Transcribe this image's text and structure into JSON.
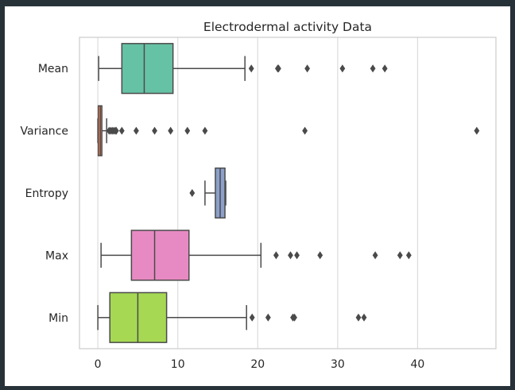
{
  "chart_data": {
    "type": "boxplot",
    "orientation": "horizontal",
    "title": "Electrodermal activity Data",
    "xlabel": "",
    "ylabel": "",
    "xlim": [
      -2.3,
      49.8
    ],
    "xticks": [
      0,
      10,
      20,
      30,
      40
    ],
    "grid": "vertical",
    "categories": [
      "Mean",
      "Variance",
      "Entropy",
      "Max",
      "Min"
    ],
    "boxes": [
      {
        "category": "Mean",
        "color": "#66c2a5",
        "whislo": 0.1,
        "q1": 3.0,
        "med": 5.8,
        "q3": 9.4,
        "whishi": 18.4,
        "fliers": [
          19.2,
          22.5,
          22.6,
          26.2,
          30.6,
          34.4,
          35.9
        ]
      },
      {
        "category": "Variance",
        "color": "#fc8d62",
        "whislo": 0.0,
        "q1": 0.05,
        "med": 0.3,
        "q3": 0.5,
        "whishi": 1.1,
        "fliers": [
          1.4,
          1.6,
          1.8,
          2.0,
          2.2,
          2.3,
          3.0,
          4.8,
          7.1,
          9.1,
          11.2,
          13.4,
          25.9,
          47.4
        ]
      },
      {
        "category": "Entropy",
        "color": "#8da0cb",
        "whislo": 13.4,
        "q1": 14.7,
        "med": 15.3,
        "q3": 15.9,
        "whishi": 16.0,
        "fliers": [
          11.8
        ]
      },
      {
        "category": "Max",
        "color": "#e78ac3",
        "whislo": 0.4,
        "q1": 4.2,
        "med": 7.1,
        "q3": 11.4,
        "whishi": 20.4,
        "fliers": [
          22.3,
          24.1,
          24.9,
          27.8,
          34.7,
          37.8,
          38.9
        ]
      },
      {
        "category": "Min",
        "color": "#a6d854",
        "whislo": 0.0,
        "q1": 1.5,
        "med": 5.0,
        "q3": 8.6,
        "whishi": 18.6,
        "fliers": [
          19.3,
          21.3,
          24.4,
          24.6,
          32.6,
          33.3
        ]
      }
    ]
  }
}
